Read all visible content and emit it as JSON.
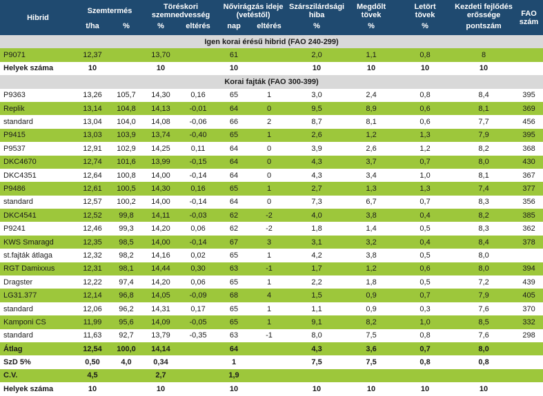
{
  "header": {
    "hibrid": "Hibrid",
    "szemtermes": "Szemtermés",
    "toreskori": [
      "Töréskori",
      "szemnedvesség"
    ],
    "novirag": [
      "Nővirágzás ideje",
      "(vetéstől)"
    ],
    "szarszilard": [
      "Szárszilárdsági",
      "hiba"
    ],
    "megdolt": [
      "Megdőlt",
      "tövek"
    ],
    "letort": [
      "Letört",
      "tövek"
    ],
    "kezdeti": [
      "Kezdeti fejlődés",
      "erőssége"
    ],
    "fao": [
      "FAO",
      "szám"
    ],
    "units": [
      "t/ha",
      "%",
      "%",
      "eltérés",
      "nap",
      "eltérés",
      "%",
      "%",
      "%",
      "pontszám"
    ]
  },
  "sections": [
    {
      "title": "Igen korai érésű hibrid (FAO 240-299)",
      "rows": [
        {
          "style": "green",
          "cells": [
            "P9071",
            "12,37",
            "",
            "13,70",
            "",
            "61",
            "",
            "2,0",
            "1,1",
            "0,8",
            "8",
            ""
          ]
        },
        {
          "style": "bold",
          "cells": [
            "Helyek száma",
            "10",
            "",
            "10",
            "",
            "10",
            "",
            "10",
            "10",
            "10",
            "10",
            ""
          ]
        }
      ]
    },
    {
      "title": "Korai fajták (FAO 300-399)",
      "rows": [
        {
          "style": "",
          "cells": [
            "P9363",
            "13,26",
            "105,7",
            "14,30",
            "0,16",
            "65",
            "1",
            "3,0",
            "2,4",
            "0,8",
            "8,4",
            "395"
          ]
        },
        {
          "style": "green",
          "cells": [
            "Replik",
            "13,14",
            "104,8",
            "14,13",
            "-0,01",
            "64",
            "0",
            "9,5",
            "8,9",
            "0,6",
            "8,1",
            "369"
          ]
        },
        {
          "style": "",
          "cells": [
            "standard",
            "13,04",
            "104,0",
            "14,08",
            "-0,06",
            "66",
            "2",
            "8,7",
            "8,1",
            "0,6",
            "7,7",
            "456"
          ]
        },
        {
          "style": "green",
          "cells": [
            "P9415",
            "13,03",
            "103,9",
            "13,74",
            "-0,40",
            "65",
            "1",
            "2,6",
            "1,2",
            "1,3",
            "7,9",
            "395"
          ]
        },
        {
          "style": "",
          "cells": [
            "P9537",
            "12,91",
            "102,9",
            "14,25",
            "0,11",
            "64",
            "0",
            "3,9",
            "2,6",
            "1,2",
            "8,2",
            "368"
          ]
        },
        {
          "style": "green",
          "cells": [
            "DKC4670",
            "12,74",
            "101,6",
            "13,99",
            "-0,15",
            "64",
            "0",
            "4,3",
            "3,7",
            "0,7",
            "8,0",
            "430"
          ]
        },
        {
          "style": "",
          "cells": [
            "DKC4351",
            "12,64",
            "100,8",
            "14,00",
            "-0,14",
            "64",
            "0",
            "4,3",
            "3,4",
            "1,0",
            "8,1",
            "367"
          ]
        },
        {
          "style": "green",
          "cells": [
            "P9486",
            "12,61",
            "100,5",
            "14,30",
            "0,16",
            "65",
            "1",
            "2,7",
            "1,3",
            "1,3",
            "7,4",
            "377"
          ]
        },
        {
          "style": "",
          "cells": [
            "standard",
            "12,57",
            "100,2",
            "14,00",
            "-0,14",
            "64",
            "0",
            "7,3",
            "6,7",
            "0,7",
            "8,3",
            "356"
          ]
        },
        {
          "style": "green",
          "cells": [
            "DKC4541",
            "12,52",
            "99,8",
            "14,11",
            "-0,03",
            "62",
            "-2",
            "4,0",
            "3,8",
            "0,4",
            "8,2",
            "385"
          ]
        },
        {
          "style": "",
          "cells": [
            "P9241",
            "12,46",
            "99,3",
            "14,20",
            "0,06",
            "62",
            "-2",
            "1,8",
            "1,4",
            "0,5",
            "8,3",
            "362"
          ]
        },
        {
          "style": "green",
          "cells": [
            "KWS Smaragd",
            "12,35",
            "98,5",
            "14,00",
            "-0,14",
            "67",
            "3",
            "3,1",
            "3,2",
            "0,4",
            "8,4",
            "378"
          ]
        },
        {
          "style": "",
          "cells": [
            "st.fajták átlaga",
            "12,32",
            "98,2",
            "14,16",
            "0,02",
            "65",
            "1",
            "4,2",
            "3,8",
            "0,5",
            "8,0",
            ""
          ]
        },
        {
          "style": "green",
          "cells": [
            "RGT Damixxus",
            "12,31",
            "98,1",
            "14,44",
            "0,30",
            "63",
            "-1",
            "1,7",
            "1,2",
            "0,6",
            "8,0",
            "394"
          ]
        },
        {
          "style": "",
          "cells": [
            "Dragster",
            "12,22",
            "97,4",
            "14,20",
            "0,06",
            "65",
            "1",
            "2,2",
            "1,8",
            "0,5",
            "7,2",
            "439"
          ]
        },
        {
          "style": "green",
          "cells": [
            "LG31.377",
            "12,14",
            "96,8",
            "14,05",
            "-0,09",
            "68",
            "4",
            "1,5",
            "0,9",
            "0,7",
            "7,9",
            "405"
          ]
        },
        {
          "style": "",
          "cells": [
            "standard",
            "12,06",
            "96,2",
            "14,31",
            "0,17",
            "65",
            "1",
            "1,1",
            "0,9",
            "0,3",
            "7,6",
            "370"
          ]
        },
        {
          "style": "green",
          "cells": [
            "Kamponi CS",
            "11,99",
            "95,6",
            "14,09",
            "-0,05",
            "65",
            "1",
            "9,1",
            "8,2",
            "1,0",
            "8,5",
            "332"
          ]
        },
        {
          "style": "",
          "cells": [
            "standard",
            "11,63",
            "92,7",
            "13,79",
            "-0,35",
            "63",
            "-1",
            "8,0",
            "7,5",
            "0,8",
            "7,6",
            "298"
          ]
        },
        {
          "style": "green bold",
          "cells": [
            "Átlag",
            "12,54",
            "100,0",
            "14,14",
            "",
            "64",
            "",
            "4,3",
            "3,6",
            "0,7",
            "8,0",
            ""
          ]
        },
        {
          "style": "bold",
          "cells": [
            "SzD 5%",
            "0,50",
            "4,0",
            "0,34",
            "",
            "1",
            "",
            "7,5",
            "7,5",
            "0,8",
            "0,8",
            ""
          ]
        },
        {
          "style": "green bold",
          "cells": [
            "C.V.",
            "4,5",
            "",
            "2,7",
            "",
            "1,9",
            "",
            "",
            "",
            "",
            "",
            ""
          ]
        },
        {
          "style": "bold",
          "cells": [
            "Helyek száma",
            "10",
            "",
            "10",
            "",
            "10",
            "",
            "10",
            "10",
            "10",
            "10",
            ""
          ]
        }
      ]
    }
  ],
  "colors": {
    "header": "#1f4a70",
    "green": "#9dc73b",
    "section": "#d9d9d9"
  }
}
